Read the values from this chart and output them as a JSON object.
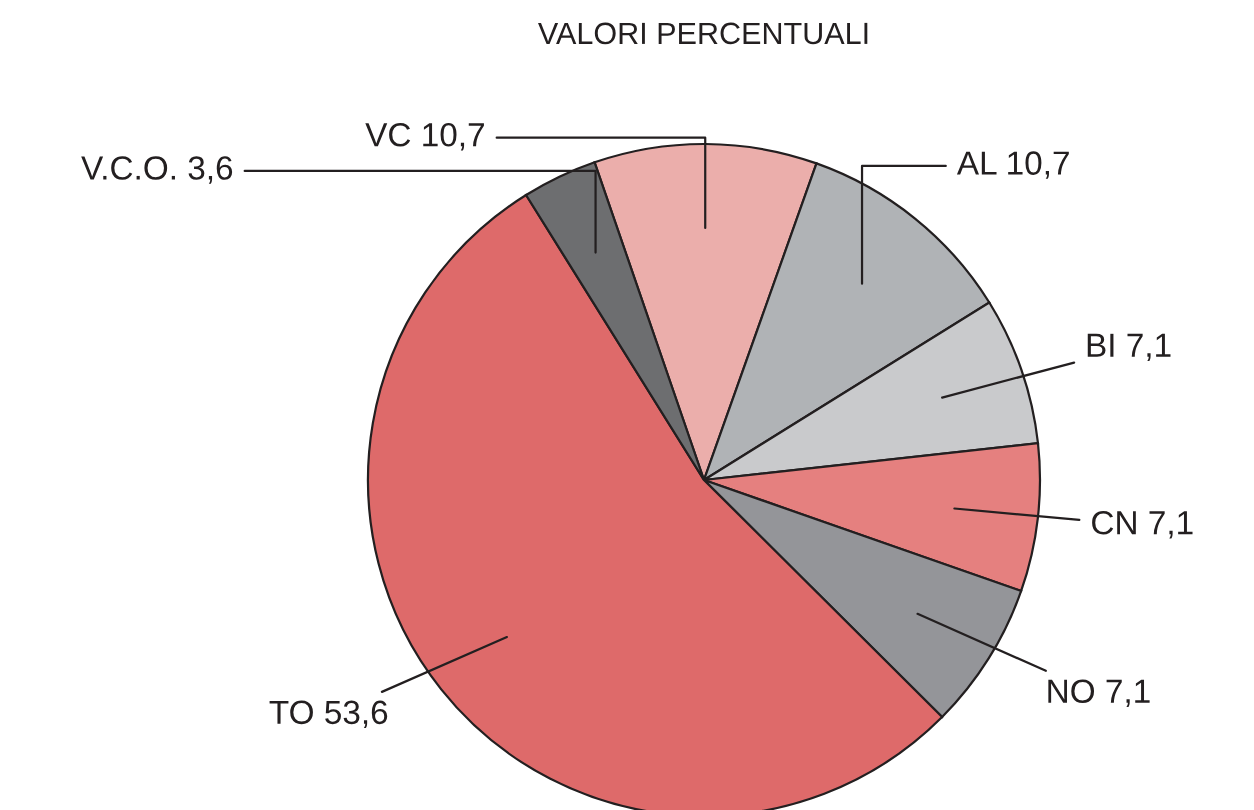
{
  "chart_data": {
    "type": "pie",
    "title": "VALORI PERCENTUALI",
    "categories": [
      "VC",
      "AL",
      "BI",
      "CN",
      "NO",
      "TO",
      "V.C.O."
    ],
    "values": [
      10.7,
      10.7,
      7.1,
      7.1,
      7.1,
      53.6,
      3.6
    ],
    "value_labels": [
      "10,7",
      "10,7",
      "7,1",
      "7,1",
      "7,1",
      "53,6",
      "3,6"
    ],
    "colors": [
      "#ebaeab",
      "#b0b3b6",
      "#c9cacc",
      "#e5807f",
      "#949599",
      "#de6a6a",
      "#6d6e70"
    ]
  }
}
